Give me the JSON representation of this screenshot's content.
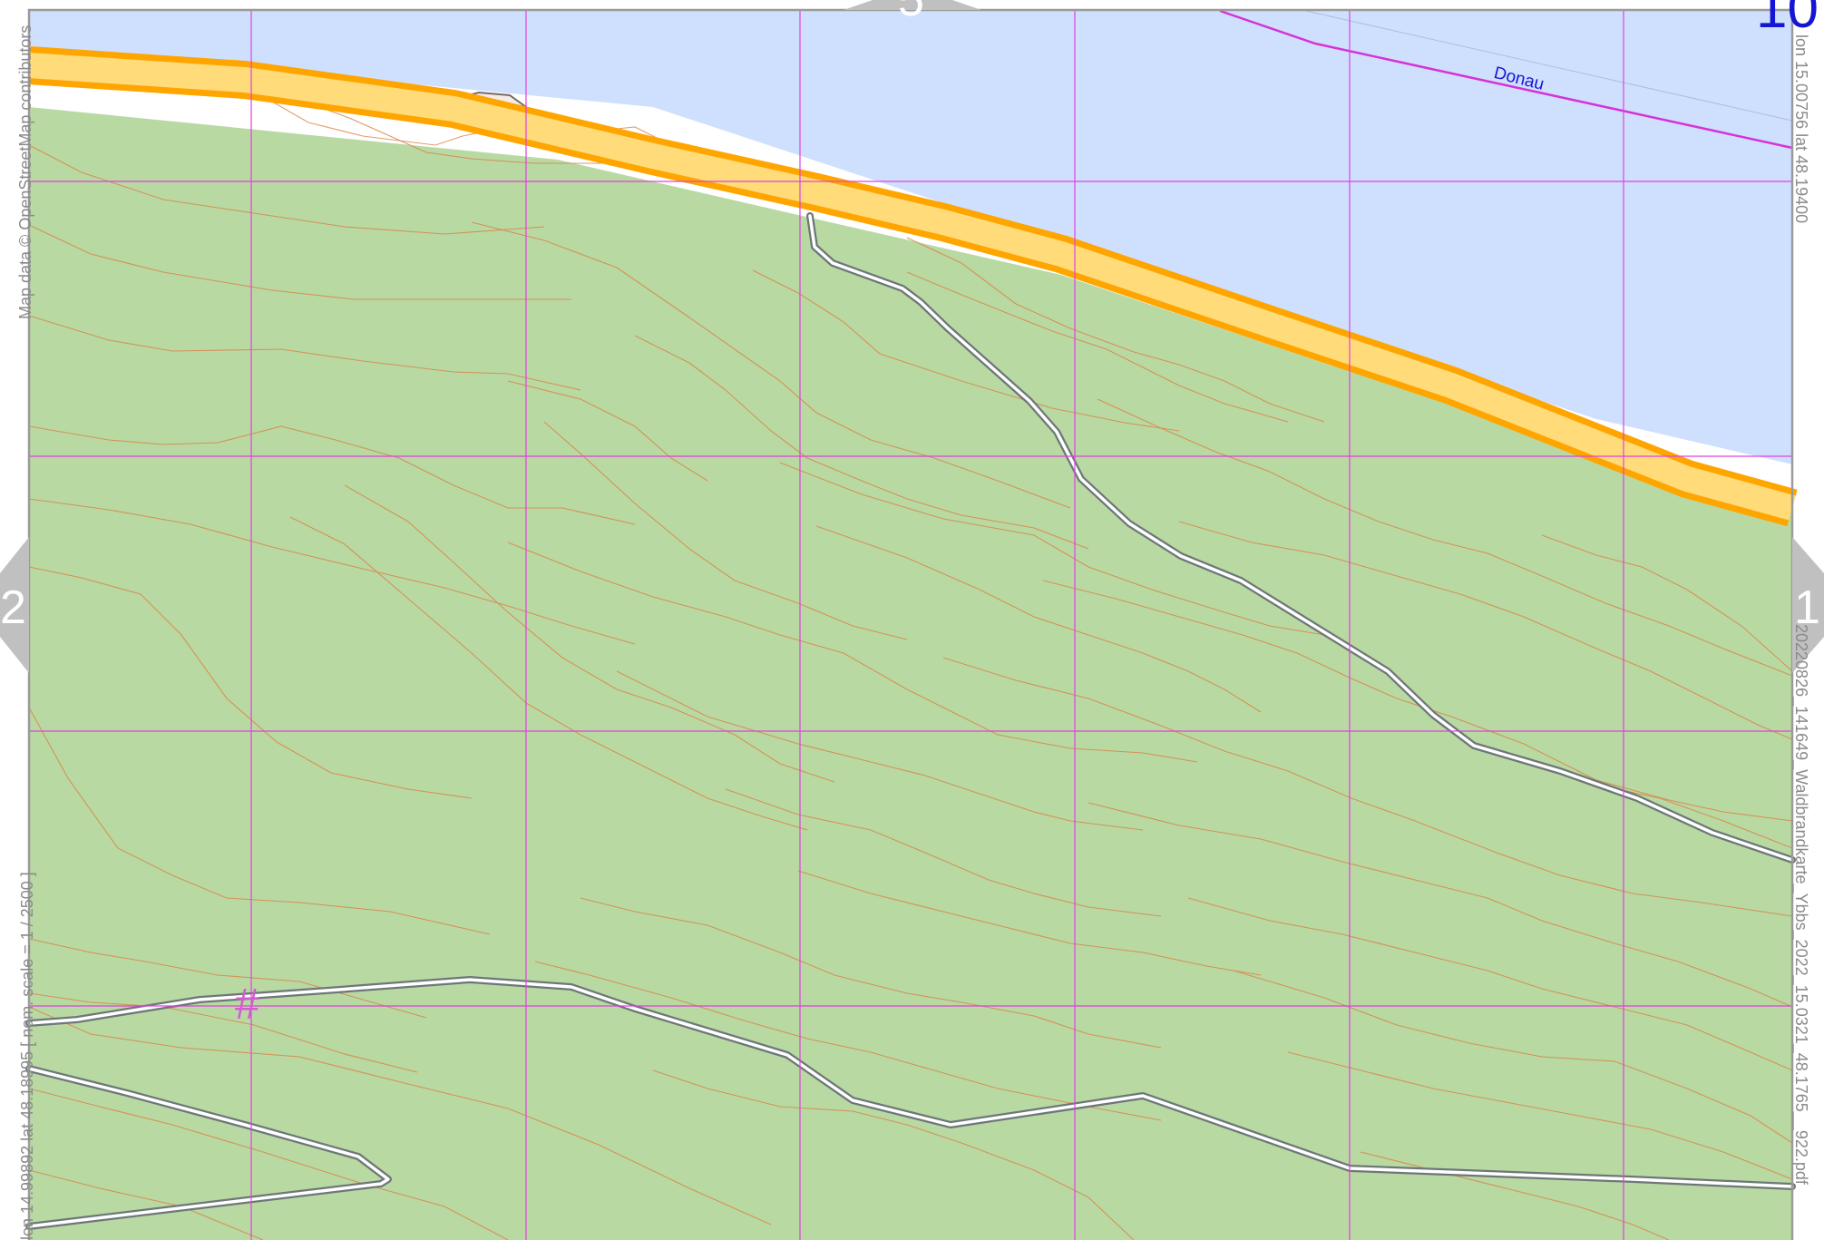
{
  "map": {
    "attribution": "Map data © OpenStreetMap contributors",
    "coord_top_right": "lon 15.00756 lat 48.19400",
    "coord_bottom_left": "lon 14.99892 lat 48.18995 [ nom. scale = 1 / 2500 ]",
    "filename": "20220826_141649_Waldbrandkarte_Ybbs_2022_15.0321_48.1765__922.pdf",
    "river_label": "Donau",
    "grid_marker": "#",
    "page_neighbors": {
      "left": "2",
      "right": "1",
      "top": "5",
      "top_right": "10"
    },
    "colors": {
      "water": "#cfe0ff",
      "forest": "#b9d9a3",
      "road_fill": "#ffdb7a",
      "road_casing": "#ffa500",
      "track_casing": "#6e7778",
      "contour": "#d8864a",
      "grid": "#e040e0",
      "river_line": "#d633d6",
      "label_blue": "#1515d6",
      "neighbor_arrow": "#c0c0c0"
    }
  }
}
